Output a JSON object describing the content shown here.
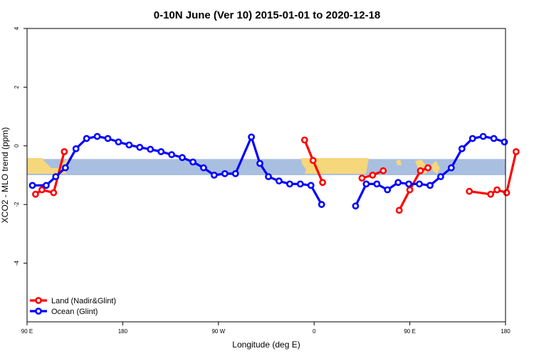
{
  "chart_data": {
    "type": "line",
    "title": "0-10N June (Ver 10)   2015-01-01 to 2020-12-18",
    "xlabel": "Longitude (deg E)",
    "ylabel": "XCO2 - MLO trend (ppm)",
    "xlim": [
      90,
      540
    ],
    "ylim": [
      -6,
      4
    ],
    "x_ticks": [
      {
        "value": 90,
        "label": "90 E"
      },
      {
        "value": 180,
        "label": "180"
      },
      {
        "value": 270,
        "label": "90 W"
      },
      {
        "value": 360,
        "label": "0"
      },
      {
        "value": 450,
        "label": "90 E"
      },
      {
        "value": 540,
        "label": "180"
      }
    ],
    "y_ticks": [
      {
        "value": 4,
        "label": "4"
      },
      {
        "value": 2,
        "label": "2"
      },
      {
        "value": 0,
        "label": "0"
      },
      {
        "value": -2,
        "label": "-2"
      },
      {
        "value": -4,
        "label": "-4"
      }
    ],
    "grid": false,
    "legend_position": "bottom-left",
    "background_band": {
      "y_range": [
        -1.0,
        -0.45
      ],
      "ocean_color": "#a9bfe0",
      "land_color": "#f7d77c"
    },
    "series": [
      {
        "name": "Land (Nadir&Glint)",
        "color": "#ff0000",
        "segments": [
          [
            [
              98,
              -1.65
            ],
            [
              104,
              -1.5
            ],
            [
              115,
              -1.6
            ],
            [
              125,
              -0.2
            ]
          ],
          [
            [
              351,
              0.2
            ],
            [
              359,
              -0.5
            ],
            [
              368,
              -1.25
            ]
          ],
          [
            [
              405,
              -1.1
            ],
            [
              415,
              -1.0
            ],
            [
              425,
              -0.85
            ]
          ],
          [
            [
              440,
              -2.2
            ],
            [
              450,
              -1.5
            ],
            [
              460,
              -0.85
            ],
            [
              467,
              -0.75
            ]
          ],
          [
            [
              506,
              -1.55
            ],
            [
              526,
              -1.65
            ],
            [
              532,
              -1.5
            ],
            [
              541,
              -1.6
            ],
            [
              550,
              -0.2
            ]
          ]
        ]
      },
      {
        "name": "Ocean (Glint)",
        "color": "#0000ff",
        "segments": [
          [
            [
              95,
              -1.35
            ],
            [
              108,
              -1.35
            ],
            [
              117,
              -1.05
            ],
            [
              126,
              -0.75
            ],
            [
              136,
              -0.1
            ],
            [
              146,
              0.25
            ],
            [
              156,
              0.32
            ],
            [
              166,
              0.25
            ],
            [
              176,
              0.13
            ],
            [
              186,
              0.03
            ],
            [
              196,
              -0.05
            ],
            [
              206,
              -0.12
            ],
            [
              216,
              -0.2
            ],
            [
              226,
              -0.3
            ],
            [
              236,
              -0.4
            ],
            [
              246,
              -0.55
            ],
            [
              256,
              -0.75
            ],
            [
              266,
              -1.0
            ],
            [
              276,
              -0.95
            ],
            [
              286,
              -0.95
            ],
            [
              301,
              0.3
            ],
            [
              309,
              -0.6
            ],
            [
              317,
              -1.05
            ],
            [
              327,
              -1.2
            ],
            [
              337,
              -1.3
            ],
            [
              347,
              -1.3
            ],
            [
              357,
              -1.35
            ],
            [
              367,
              -2.0
            ]
          ]
        ]
      },
      {
        "name": "Ocean (Glint)",
        "color": "#0000ff",
        "segments": [
          [
            [
              399,
              -2.05
            ],
            [
              409,
              -1.3
            ],
            [
              419,
              -1.3
            ],
            [
              429,
              -1.5
            ],
            [
              439,
              -1.25
            ],
            [
              449,
              -1.3
            ],
            [
              459,
              -1.3
            ],
            [
              469,
              -1.35
            ],
            [
              479,
              -1.05
            ],
            [
              489,
              -0.75
            ],
            [
              499,
              -0.1
            ],
            [
              509,
              0.25
            ],
            [
              519,
              0.32
            ],
            [
              529,
              0.25
            ],
            [
              539,
              0.13
            ]
          ]
        ]
      }
    ],
    "legend": [
      {
        "label": "Land (Nadir&Glint)",
        "color": "#ff0000"
      },
      {
        "label": "Ocean (Glint)",
        "color": "#0000ff"
      }
    ]
  }
}
